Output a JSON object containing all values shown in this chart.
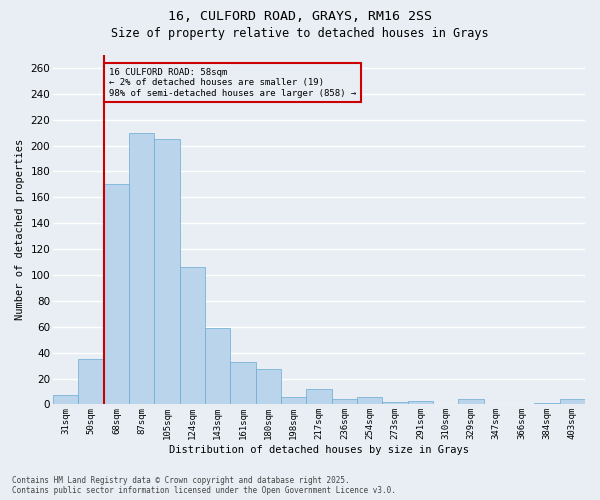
{
  "title_line1": "16, CULFORD ROAD, GRAYS, RM16 2SS",
  "title_line2": "Size of property relative to detached houses in Grays",
  "xlabel": "Distribution of detached houses by size in Grays",
  "ylabel": "Number of detached properties",
  "categories": [
    "31sqm",
    "50sqm",
    "68sqm",
    "87sqm",
    "105sqm",
    "124sqm",
    "143sqm",
    "161sqm",
    "180sqm",
    "198sqm",
    "217sqm",
    "236sqm",
    "254sqm",
    "273sqm",
    "291sqm",
    "310sqm",
    "329sqm",
    "347sqm",
    "366sqm",
    "384sqm",
    "403sqm"
  ],
  "values": [
    7,
    35,
    170,
    210,
    205,
    106,
    59,
    33,
    27,
    6,
    12,
    4,
    6,
    2,
    3,
    0,
    4,
    0,
    0,
    1,
    4
  ],
  "bar_color": "#bad4ec",
  "bar_edge_color": "#6aaad4",
  "annotation_text": "16 CULFORD ROAD: 58sqm\n← 2% of detached houses are smaller (19)\n98% of semi-detached houses are larger (858) →",
  "annotation_box_color": "#cc0000",
  "ref_line_color": "#cc0000",
  "ylim": [
    0,
    270
  ],
  "yticks": [
    0,
    20,
    40,
    60,
    80,
    100,
    120,
    140,
    160,
    180,
    200,
    220,
    240,
    260
  ],
  "footer_line1": "Contains HM Land Registry data © Crown copyright and database right 2025.",
  "footer_line2": "Contains public sector information licensed under the Open Government Licence v3.0.",
  "background_color": "#e8eef4",
  "grid_color": "#ffffff",
  "fig_width": 6.0,
  "fig_height": 5.0,
  "dpi": 100
}
